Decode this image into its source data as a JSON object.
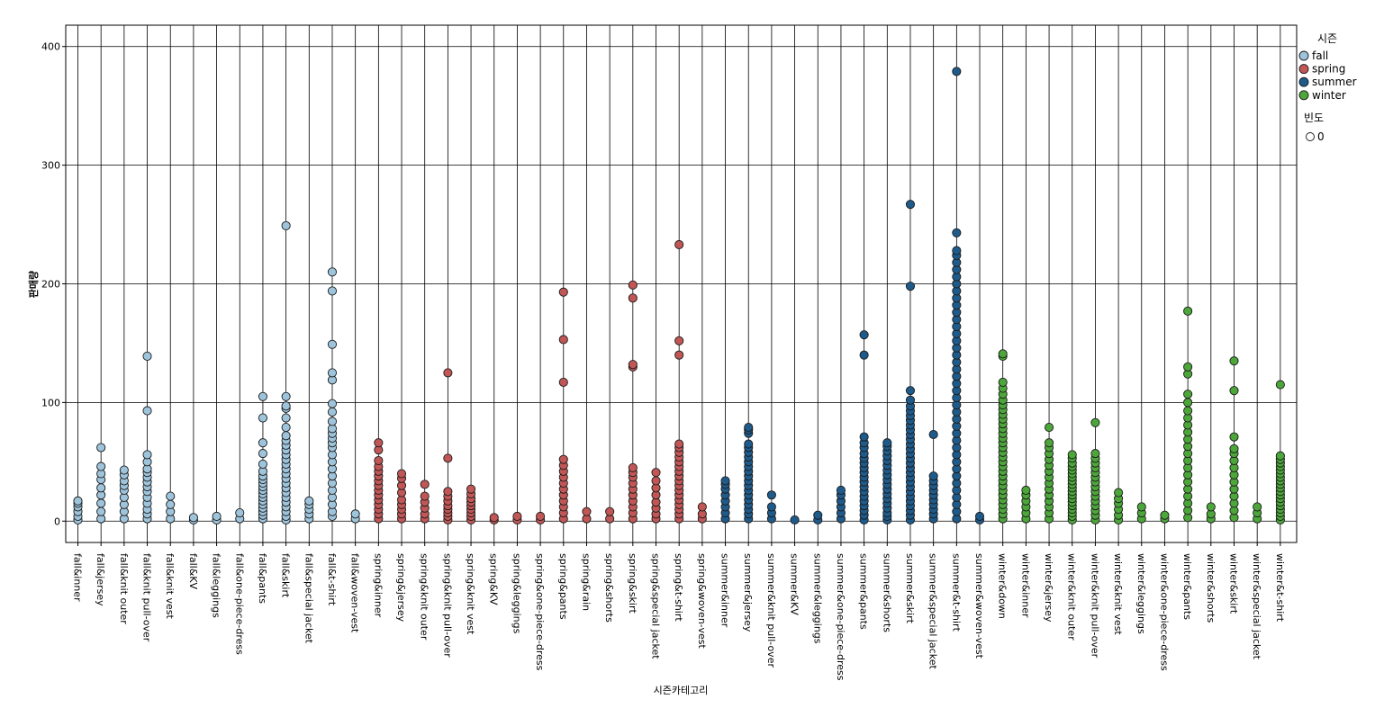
{
  "chart_data": {
    "type": "scatter",
    "title": "",
    "xlabel": "시즌카테고리",
    "ylabel": "판매량",
    "ylim": [
      -18,
      418
    ],
    "yticks": [
      0,
      100,
      200,
      300,
      400
    ],
    "grid": true,
    "legend_position": "top-right",
    "legend": {
      "title": "시즌",
      "entries": [
        {
          "name": "fall",
          "color": "#9ec4dc"
        },
        {
          "name": "spring",
          "color": "#c15656"
        },
        {
          "name": "summer",
          "color": "#1e5a8a"
        },
        {
          "name": "winter",
          "color": "#4ca63a"
        }
      ],
      "size_title": "빈도",
      "size_entries": [
        "0"
      ]
    },
    "categories": [
      "fall&inner",
      "fall&jersey",
      "fall&knit outer",
      "fall&knit pull-over",
      "fall&knit vest",
      "fall&KV",
      "fall&leggings",
      "fall&one-piece-dress",
      "fall&pants",
      "fall&skirt",
      "fall&special jacket",
      "fall&t-shirt",
      "fall&woven-vest",
      "spring&inner",
      "spring&jersey",
      "spring&knit outer",
      "spring&knit pull-over",
      "spring&knit vest",
      "spring&KV",
      "spring&leggings",
      "spring&one-piece-dress",
      "spring&pants",
      "spring&rain",
      "spring&shorts",
      "spring&skirt",
      "spring&special jacket",
      "spring&t-shirt",
      "spring&woven-vest",
      "summer&inner",
      "summer&jersey",
      "summer&knit pull-over",
      "summer&KV",
      "summer&leggings",
      "summer&one-piece-dress",
      "summer&pants",
      "summer&shorts",
      "summer&skirt",
      "summer&special jacket",
      "summer&t-shirt",
      "summer&woven-vest",
      "winter&down",
      "winter&inner",
      "winter&jersey",
      "winter&knit outer",
      "winter&knit pull-over",
      "winter&knit vest",
      "winter&leggings",
      "winter&one-piece-dress",
      "winter&pants",
      "winter&shorts",
      "winter&skirt",
      "winter&special jacket",
      "winter&t-shirt"
    ],
    "series": [
      {
        "name": "fall",
        "data": [
          {
            "x": "fall&inner",
            "y": [
              1,
              4,
              8,
              12,
              15,
              17
            ]
          },
          {
            "x": "fall&jersey",
            "y": [
              2,
              8,
              15,
              22,
              28,
              35,
              40,
              46,
              62
            ]
          },
          {
            "x": "fall&knit outer",
            "y": [
              2,
              8,
              14,
              20,
              26,
              30,
              34,
              39,
              43
            ]
          },
          {
            "x": "fall&knit pull-over",
            "y": [
              2,
              6,
              10,
              15,
              20,
              25,
              29,
              33,
              37,
              41,
              44,
              50,
              56,
              93,
              139
            ]
          },
          {
            "x": "fall&knit vest",
            "y": [
              2,
              8,
              14,
              21
            ]
          },
          {
            "x": "fall&KV",
            "y": [
              1,
              3
            ]
          },
          {
            "x": "fall&leggings",
            "y": [
              1,
              4
            ]
          },
          {
            "x": "fall&one-piece-dress",
            "y": [
              2,
              7
            ]
          },
          {
            "x": "fall&pants",
            "y": [
              2,
              5,
              8,
              11,
              14,
              17,
              20,
              23,
              26,
              29,
              32,
              35,
              38,
              42,
              48,
              57,
              66,
              87,
              105
            ]
          },
          {
            "x": "fall&skirt",
            "y": [
              1,
              4,
              8,
              12,
              16,
              20,
              24,
              28,
              32,
              36,
              40,
              44,
              48,
              52,
              56,
              60,
              64,
              68,
              72,
              79,
              87,
              95,
              97,
              105,
              249
            ]
          },
          {
            "x": "fall&special jacket",
            "y": [
              2,
              6,
              10,
              14,
              17
            ]
          },
          {
            "x": "fall&t-shirt",
            "y": [
              4,
              8,
              14,
              20,
              26,
              32,
              38,
              44,
              50,
              56,
              62,
              66,
              70,
              74,
              78,
              84,
              92,
              99,
              119,
              125,
              149,
              194,
              210
            ]
          },
          {
            "x": "fall&woven-vest",
            "y": [
              2,
              6
            ]
          }
        ]
      },
      {
        "name": "spring",
        "data": [
          {
            "x": "spring&inner",
            "y": [
              2,
              6,
              10,
              14,
              18,
              22,
              26,
              30,
              34,
              38,
              42,
              46,
              51,
              60,
              66
            ]
          },
          {
            "x": "spring&jersey",
            "y": [
              2,
              6,
              10,
              14,
              18,
              24,
              30,
              36,
              40
            ]
          },
          {
            "x": "spring&knit outer",
            "y": [
              2,
              6,
              11,
              16,
              21,
              31
            ]
          },
          {
            "x": "spring&knit pull-over",
            "y": [
              1,
              4,
              7,
              10,
              13,
              17,
              21,
              25,
              53,
              125
            ]
          },
          {
            "x": "spring&knit vest",
            "y": [
              1,
              4,
              7,
              10,
              13,
              16,
              19,
              23,
              27
            ]
          },
          {
            "x": "spring&KV",
            "y": [
              1,
              3
            ]
          },
          {
            "x": "spring&leggings",
            "y": [
              1,
              4
            ]
          },
          {
            "x": "spring&one-piece-dress",
            "y": [
              1,
              4
            ]
          },
          {
            "x": "spring&pants",
            "y": [
              2,
              7,
              12,
              17,
              22,
              27,
              32,
              37,
              42,
              47,
              52,
              117,
              153,
              193
            ]
          },
          {
            "x": "spring&rain",
            "y": [
              2,
              8
            ]
          },
          {
            "x": "spring&shorts",
            "y": [
              2,
              8
            ]
          },
          {
            "x": "spring&skirt",
            "y": [
              2,
              7,
              12,
              17,
              22,
              27,
              32,
              37,
              41,
              45,
              130,
              132,
              188,
              199
            ]
          },
          {
            "x": "spring&special jacket",
            "y": [
              2,
              6,
              11,
              16,
              22,
              28,
              34,
              41
            ]
          },
          {
            "x": "spring&t-shirt",
            "y": [
              2,
              6,
              10,
              14,
              18,
              22,
              26,
              30,
              34,
              38,
              42,
              46,
              50,
              54,
              58,
              62,
              65,
              140,
              152,
              233
            ]
          },
          {
            "x": "spring&woven-vest",
            "y": [
              2,
              6,
              12
            ]
          }
        ]
      },
      {
        "name": "summer",
        "data": [
          {
            "x": "summer&inner",
            "y": [
              2,
              7,
              12,
              17,
              22,
              27,
              31,
              34
            ]
          },
          {
            "x": "summer&jersey",
            "y": [
              2,
              6,
              10,
              14,
              18,
              22,
              26,
              30,
              34,
              38,
              42,
              46,
              50,
              54,
              58,
              62,
              65,
              74,
              77,
              79
            ]
          },
          {
            "x": "summer&knit pull-over",
            "y": [
              2,
              7,
              12,
              22
            ]
          },
          {
            "x": "summer&KV",
            "y": [
              1
            ]
          },
          {
            "x": "summer&leggings",
            "y": [
              1,
              5
            ]
          },
          {
            "x": "summer&one-piece-dress",
            "y": [
              2,
              7,
              12,
              17,
              22,
              26
            ]
          },
          {
            "x": "summer&pants",
            "y": [
              1,
              5,
              9,
              13,
              17,
              21,
              25,
              29,
              33,
              37,
              41,
              45,
              49,
              53,
              57,
              62,
              66,
              71,
              140,
              157
            ]
          },
          {
            "x": "summer&shorts",
            "y": [
              1,
              4,
              7,
              11,
              15,
              19,
              23,
              27,
              31,
              35,
              39,
              43,
              47,
              51,
              55,
              59,
              63,
              66
            ]
          },
          {
            "x": "summer&skirt",
            "y": [
              1,
              5,
              9,
              13,
              17,
              21,
              25,
              29,
              33,
              37,
              41,
              45,
              49,
              53,
              57,
              61,
              65,
              69,
              73,
              77,
              81,
              85,
              89,
              93,
              97,
              102,
              110,
              198,
              267
            ]
          },
          {
            "x": "summer&special jacket",
            "y": [
              2,
              6,
              10,
              14,
              18,
              22,
              26,
              30,
              34,
              38,
              73
            ]
          },
          {
            "x": "summer&t-shirt",
            "y": [
              2,
              8,
              14,
              20,
              26,
              32,
              38,
              44,
              50,
              56,
              62,
              68,
              74,
              80,
              86,
              92,
              98,
              104,
              110,
              116,
              122,
              128,
              134,
              140,
              146,
              152,
              158,
              164,
              170,
              176,
              182,
              188,
              194,
              200,
              206,
              212,
              218,
              224,
              228,
              243,
              379
            ]
          },
          {
            "x": "summer&woven-vest",
            "y": [
              1,
              4
            ]
          }
        ]
      },
      {
        "name": "winter",
        "data": [
          {
            "x": "winter&down",
            "y": [
              2,
              6,
              10,
              14,
              18,
              22,
              26,
              30,
              34,
              38,
              42,
              46,
              50,
              54,
              58,
              62,
              66,
              70,
              74,
              78,
              82,
              86,
              90,
              94,
              98,
              102,
              107,
              112,
              117,
              139,
              141
            ]
          },
          {
            "x": "winter&inner",
            "y": [
              2,
              7,
              12,
              17,
              22,
              26
            ]
          },
          {
            "x": "winter&jersey",
            "y": [
              2,
              7,
              12,
              17,
              22,
              27,
              32,
              37,
              42,
              47,
              52,
              57,
              62,
              66,
              79
            ]
          },
          {
            "x": "winter&knit outer",
            "y": [
              1,
              4,
              7,
              10,
              13,
              16,
              19,
              22,
              25,
              28,
              31,
              34,
              37,
              40,
              43,
              46,
              49,
              53,
              56
            ]
          },
          {
            "x": "winter&knit pull-over",
            "y": [
              1,
              5,
              9,
              13,
              17,
              21,
              25,
              29,
              33,
              37,
              41,
              45,
              49,
              53,
              57,
              83
            ]
          },
          {
            "x": "winter&knit vest",
            "y": [
              1,
              5,
              10,
              15,
              19,
              24
            ]
          },
          {
            "x": "winter&leggings",
            "y": [
              2,
              7,
              12
            ]
          },
          {
            "x": "winter&one-piece-dress",
            "y": [
              2,
              5
            ]
          },
          {
            "x": "winter&pants",
            "y": [
              3,
              9,
              15,
              21,
              27,
              33,
              39,
              45,
              51,
              57,
              63,
              69,
              75,
              81,
              87,
              93,
              100,
              107,
              124,
              130,
              177
            ]
          },
          {
            "x": "winter&shorts",
            "y": [
              2,
              6,
              12
            ]
          },
          {
            "x": "winter&skirt",
            "y": [
              3,
              9,
              15,
              21,
              27,
              33,
              39,
              45,
              51,
              57,
              61,
              71,
              110,
              135
            ]
          },
          {
            "x": "winter&special jacket",
            "y": [
              2,
              7,
              12
            ]
          },
          {
            "x": "winter&t-shirt",
            "y": [
              1,
              4,
              7,
              10,
              13,
              16,
              19,
              22,
              25,
              28,
              31,
              34,
              37,
              40,
              43,
              46,
              49,
              52,
              55,
              115
            ]
          }
        ]
      }
    ]
  }
}
